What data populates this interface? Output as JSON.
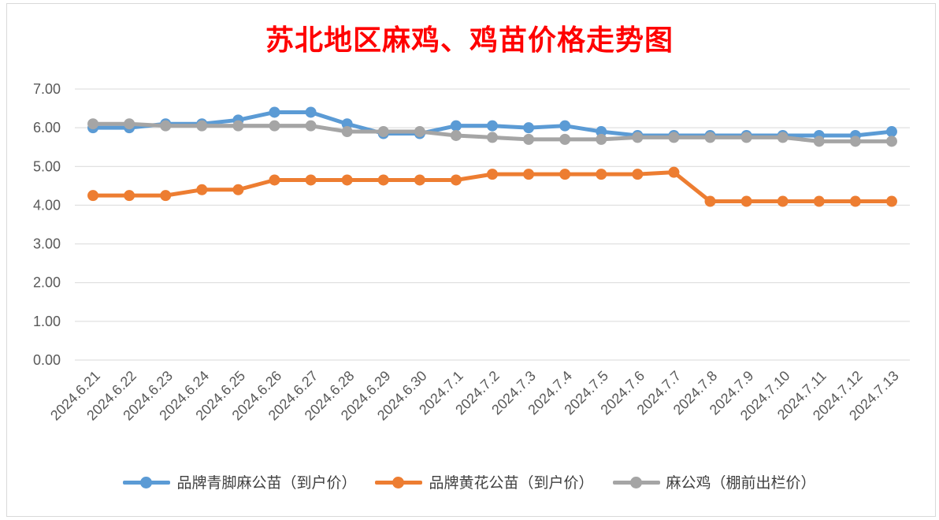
{
  "chart_data": {
    "type": "line",
    "title": "苏北地区麻鸡、鸡苗价格走势图",
    "categories": [
      "2024.6.21",
      "2024.6.22",
      "2024.6.23",
      "2024.6.24",
      "2024.6.25",
      "2024.6.26",
      "2024.6.27",
      "2024.6.28",
      "2024.6.29",
      "2024.6.30",
      "2024.7.1",
      "2024.7.2",
      "2024.7.3",
      "2024.7.4",
      "2024.7.5",
      "2024.7.6",
      "2024.7.7",
      "2024.7.8",
      "2024.7.9",
      "2024.7.10",
      "2024.7.11",
      "2024.7.12",
      "2024.7.13"
    ],
    "ylim": [
      0,
      7
    ],
    "yticks": [
      "0.00",
      "1.00",
      "2.00",
      "3.00",
      "4.00",
      "5.00",
      "6.00",
      "7.00"
    ],
    "grid": true,
    "legend_position": "bottom",
    "series": [
      {
        "name": "品牌青脚麻公苗（到户价）",
        "color": "#5b9bd5",
        "values": [
          6.0,
          6.0,
          6.1,
          6.1,
          6.2,
          6.4,
          6.4,
          6.1,
          5.85,
          5.85,
          6.05,
          6.05,
          6.0,
          6.05,
          5.9,
          5.8,
          5.8,
          5.8,
          5.8,
          5.8,
          5.8,
          5.8,
          5.9
        ]
      },
      {
        "name": "品牌黄花公苗（到户价）",
        "color": "#ed7d31",
        "values": [
          4.25,
          4.25,
          4.25,
          4.4,
          4.4,
          4.65,
          4.65,
          4.65,
          4.65,
          4.65,
          4.65,
          4.8,
          4.8,
          4.8,
          4.8,
          4.8,
          4.85,
          4.1,
          4.1,
          4.1,
          4.1,
          4.1,
          4.1
        ]
      },
      {
        "name": "麻公鸡（棚前出栏价）",
        "color": "#a5a5a5",
        "values": [
          6.1,
          6.1,
          6.05,
          6.05,
          6.05,
          6.05,
          6.05,
          5.9,
          5.9,
          5.9,
          5.8,
          5.75,
          5.7,
          5.7,
          5.7,
          5.75,
          5.75,
          5.75,
          5.75,
          5.75,
          5.65,
          5.65,
          5.65
        ]
      }
    ]
  }
}
